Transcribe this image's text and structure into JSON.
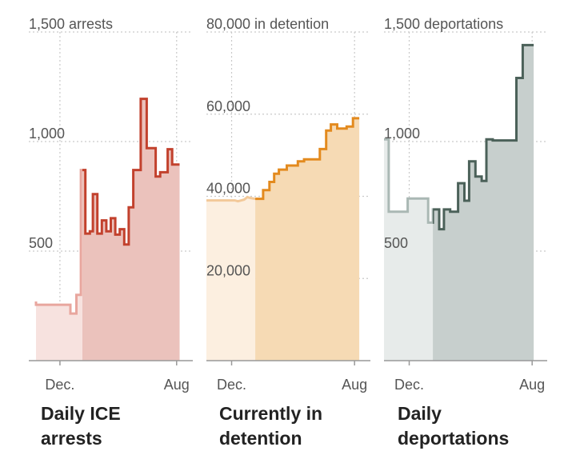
{
  "chart_data": [
    {
      "type": "area",
      "title": "Daily ICE arrests",
      "title_lines": [
        "Daily ICE",
        "arrests"
      ],
      "ylim": [
        0,
        1500
      ],
      "yticks": [
        {
          "value": 500,
          "label": "500"
        },
        {
          "value": 1000,
          "label": "1,000"
        },
        {
          "value": 1500,
          "label": "1,500 arrests"
        }
      ],
      "xticks": [
        {
          "x": 0.16,
          "label": "Dec."
        },
        {
          "x": 0.94,
          "label": "Aug"
        }
      ],
      "split_x": 0.31,
      "colors": {
        "line": "#c2412d",
        "fill": "#ebc2bc",
        "line_light": "#e8a69e",
        "fill_light": "#f7e2df"
      },
      "x": [
        0.0,
        0.0,
        0.23,
        0.23,
        0.27,
        0.27,
        0.3,
        0.3,
        0.33,
        0.33,
        0.36,
        0.36,
        0.38,
        0.38,
        0.41,
        0.41,
        0.44,
        0.44,
        0.47,
        0.47,
        0.5,
        0.5,
        0.53,
        0.53,
        0.56,
        0.56,
        0.59,
        0.59,
        0.62,
        0.62,
        0.65,
        0.65,
        0.7,
        0.7,
        0.74,
        0.74,
        0.8,
        0.8,
        0.83,
        0.83,
        0.88,
        0.88,
        0.91,
        0.91,
        0.93,
        0.93,
        0.96,
        0.96
      ],
      "values": [
        270,
        255,
        255,
        215,
        215,
        300,
        300,
        870,
        870,
        580,
        580,
        590,
        590,
        760,
        760,
        580,
        580,
        640,
        640,
        590,
        590,
        650,
        650,
        575,
        575,
        600,
        600,
        530,
        530,
        700,
        700,
        870,
        870,
        1195,
        1195,
        970,
        970,
        840,
        840,
        860,
        860,
        965,
        965,
        895,
        895,
        895,
        895,
        895
      ]
    },
    {
      "type": "area",
      "title": "Currently in detention",
      "title_lines": [
        "Currently in",
        "detention"
      ],
      "ylim": [
        0,
        80000
      ],
      "yticks": [
        {
          "value": 20000,
          "label": "20,000"
        },
        {
          "value": 40000,
          "label": "40,000"
        },
        {
          "value": 60000,
          "label": "60,000"
        },
        {
          "value": 80000,
          "label": "80,000 in detention"
        }
      ],
      "xticks": [
        {
          "x": 0.16,
          "label": "Dec."
        },
        {
          "x": 0.94,
          "label": "Aug"
        }
      ],
      "split_x": 0.31,
      "colors": {
        "line": "#e38a1e",
        "fill": "#f6dab4",
        "line_light": "#f3c999",
        "fill_light": "#fcefe0"
      },
      "x": [
        0.0,
        0.18,
        0.2,
        0.24,
        0.26,
        0.28,
        0.31,
        0.33,
        0.36,
        0.36,
        0.4,
        0.4,
        0.43,
        0.43,
        0.46,
        0.46,
        0.51,
        0.51,
        0.58,
        0.58,
        0.62,
        0.62,
        0.68,
        0.68,
        0.72,
        0.72,
        0.76,
        0.76,
        0.79,
        0.79,
        0.83,
        0.83,
        0.89,
        0.89,
        0.93,
        0.93,
        0.97
      ],
      "values": [
        39000,
        39000,
        38800,
        39200,
        39800,
        39600,
        39400,
        39400,
        39400,
        41500,
        41500,
        43500,
        43500,
        45500,
        45500,
        46500,
        46500,
        47500,
        47500,
        48500,
        48500,
        49000,
        49000,
        49000,
        49000,
        51500,
        51500,
        56000,
        56000,
        57500,
        57500,
        56500,
        56500,
        57000,
        57000,
        59000,
        59000
      ]
    },
    {
      "type": "area",
      "title": "Daily deportations",
      "title_lines": [
        "Daily",
        "deportations"
      ],
      "ylim": [
        0,
        1500
      ],
      "yticks": [
        {
          "value": 500,
          "label": "500"
        },
        {
          "value": 1000,
          "label": "1,000"
        },
        {
          "value": 1500,
          "label": "1,500 deportations"
        }
      ],
      "xticks": [
        {
          "x": 0.16,
          "label": "Dec."
        },
        {
          "x": 0.94,
          "label": "Aug"
        }
      ],
      "split_x": 0.31,
      "colors": {
        "line": "#4b6159",
        "fill": "#c7cfcd",
        "line_light": "#aab8b4",
        "fill_light": "#e7ebea"
      },
      "x": [
        0.0,
        0.0,
        0.03,
        0.03,
        0.15,
        0.15,
        0.28,
        0.28,
        0.31,
        0.31,
        0.35,
        0.35,
        0.38,
        0.38,
        0.42,
        0.42,
        0.47,
        0.47,
        0.51,
        0.51,
        0.54,
        0.54,
        0.58,
        0.58,
        0.62,
        0.62,
        0.65,
        0.65,
        0.69,
        0.69,
        0.73,
        0.73,
        0.84,
        0.84,
        0.88,
        0.88,
        0.92,
        0.92,
        0.95
      ],
      "values": [
        1010,
        1010,
        1010,
        680,
        680,
        740,
        740,
        630,
        630,
        690,
        690,
        600,
        600,
        690,
        690,
        680,
        680,
        810,
        810,
        730,
        730,
        910,
        910,
        840,
        840,
        820,
        820,
        1010,
        1010,
        1005,
        1005,
        1005,
        1005,
        1290,
        1290,
        1440,
        1440,
        1440,
        1440
      ]
    }
  ]
}
